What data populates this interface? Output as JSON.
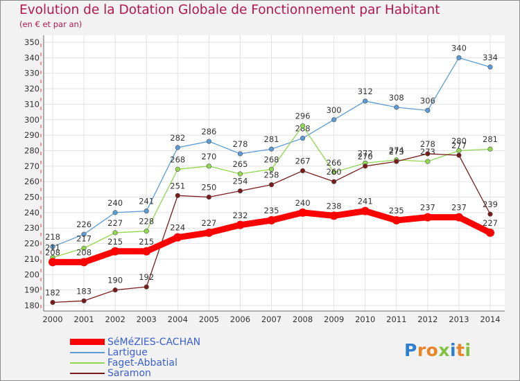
{
  "chart_data": {
    "type": "line",
    "title": "Evolution de la Dotation Globale de Fonctionnement par Habitant",
    "subtitle": "(en € et par an)",
    "x": [
      "2000",
      "2001",
      "2002",
      "2003",
      "2004",
      "2005",
      "2006",
      "2007",
      "2008",
      "2009",
      "2010",
      "2011",
      "2012",
      "2013",
      "2014"
    ],
    "ylim": [
      180,
      350
    ],
    "yticks": [
      180,
      190,
      200,
      210,
      220,
      230,
      240,
      250,
      260,
      270,
      280,
      290,
      300,
      310,
      320,
      330,
      340,
      350
    ],
    "grid": true,
    "legend_position": "bottom-left",
    "series": [
      {
        "name": "SéMéZIES-CACHAN",
        "color": "#ff0000",
        "emphasis": true,
        "values": [
          208,
          208,
          215,
          215,
          224,
          227,
          232,
          235,
          240,
          238,
          241,
          235,
          237,
          237,
          227
        ]
      },
      {
        "name": "Lartigue",
        "color": "#5b9bd5",
        "emphasis": false,
        "values": [
          218,
          226,
          240,
          241,
          282,
          286,
          278,
          281,
          288,
          300,
          312,
          308,
          306,
          340,
          334
        ]
      },
      {
        "name": "Faget-Abbatial",
        "color": "#90d850",
        "emphasis": false,
        "values": [
          211,
          217,
          227,
          228,
          268,
          270,
          265,
          268,
          296,
          266,
          272,
          274,
          273,
          280,
          281
        ]
      },
      {
        "name": "Saramon",
        "color": "#7a1b1b",
        "emphasis": false,
        "values": [
          182,
          183,
          190,
          192,
          251,
          250,
          254,
          258,
          267,
          260,
          270,
          273,
          278,
          277,
          239
        ]
      }
    ]
  },
  "logo": {
    "text": "Proxiti",
    "colors": [
      "#2f7fd0",
      "#e8852a",
      "#e8852a",
      "#7fc241",
      "#2f7fd0",
      "#e8852a",
      "#7fc241"
    ]
  }
}
